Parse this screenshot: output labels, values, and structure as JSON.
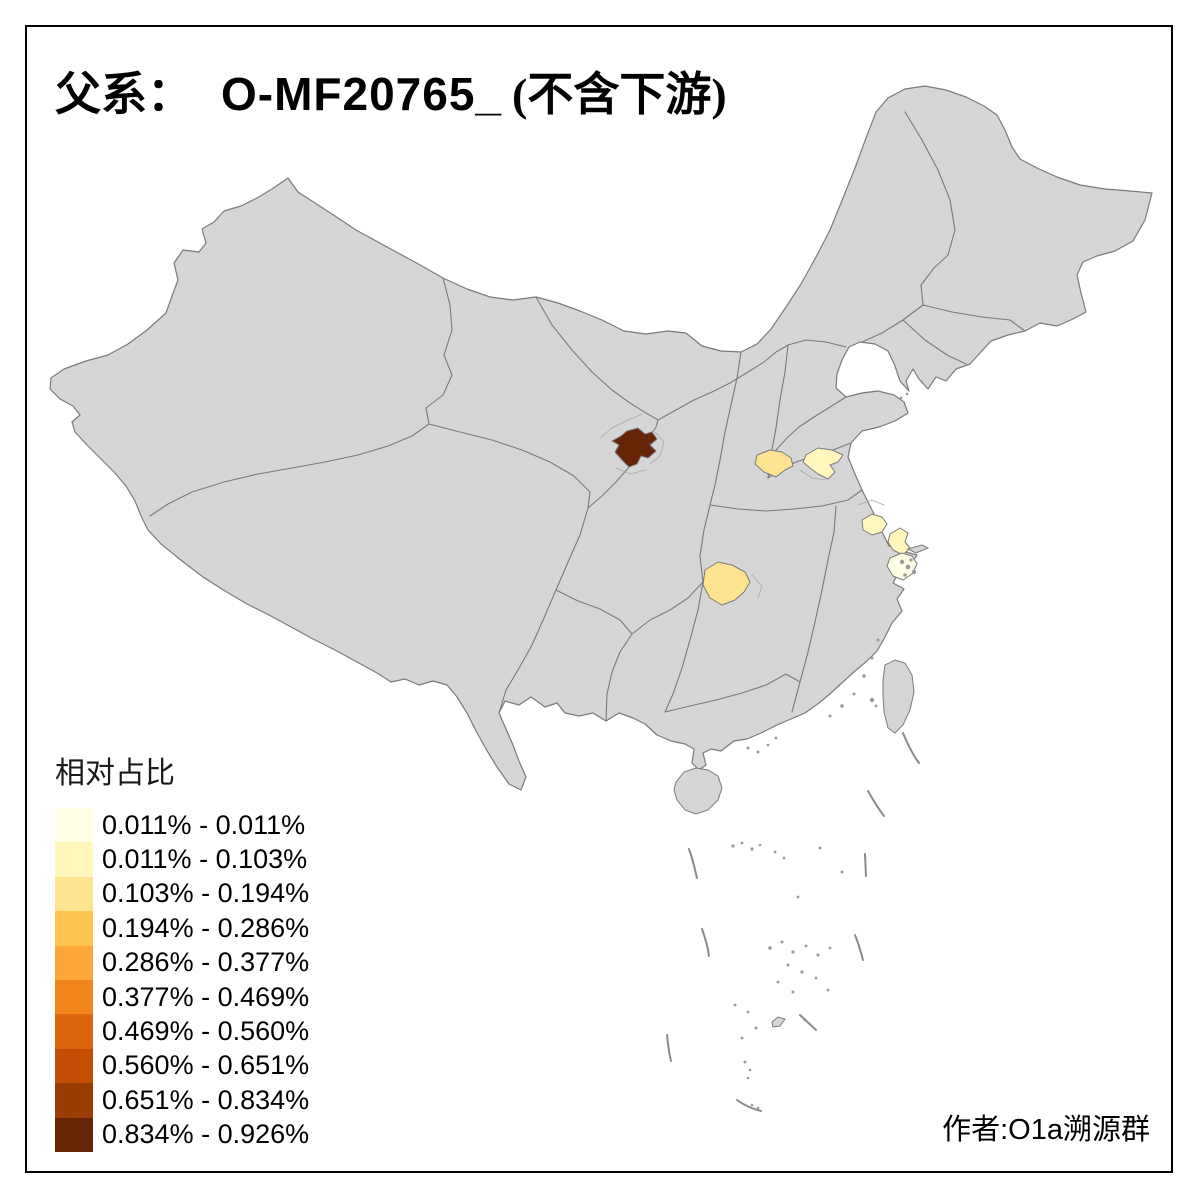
{
  "title": {
    "part_zh_prefix": "父系：",
    "part_code": "O-MF20765_",
    "part_zh_suffix": "(不含下游)"
  },
  "legend": {
    "title": "相对占比",
    "items": [
      {
        "label": "0.011% - 0.011%",
        "color": "#FFFFE5"
      },
      {
        "label": "0.011% - 0.103%",
        "color": "#FFF7BC"
      },
      {
        "label": "0.103% - 0.194%",
        "color": "#FEE391"
      },
      {
        "label": "0.194% - 0.286%",
        "color": "#FEC44F"
      },
      {
        "label": "0.286% - 0.377%",
        "color": "#FDA63A"
      },
      {
        "label": "0.377% - 0.469%",
        "color": "#F0861B"
      },
      {
        "label": "0.469% - 0.560%",
        "color": "#DB640F"
      },
      {
        "label": "0.560% - 0.651%",
        "color": "#C24D03"
      },
      {
        "label": "0.651% - 0.834%",
        "color": "#993D04"
      },
      {
        "label": "0.834% - 0.926%",
        "color": "#662506"
      }
    ]
  },
  "credit": "作者:O1a溯源群",
  "map": {
    "background": "#FFFFFF",
    "land_color": "#D6D6D6",
    "border_color": "#7A7A7A",
    "frame_color": "#000000",
    "regions": [
      {
        "id": "region-lanzhou",
        "bin": 9
      },
      {
        "id": "region-shanxi-south",
        "bin": 2
      },
      {
        "id": "region-henan-north",
        "bin": 1
      },
      {
        "id": "region-jiangsu-mid",
        "bin": 1
      },
      {
        "id": "region-jiangsu-south",
        "bin": 1
      },
      {
        "id": "region-shanghai",
        "bin": 0
      },
      {
        "id": "region-chongqing",
        "bin": 2
      }
    ]
  }
}
